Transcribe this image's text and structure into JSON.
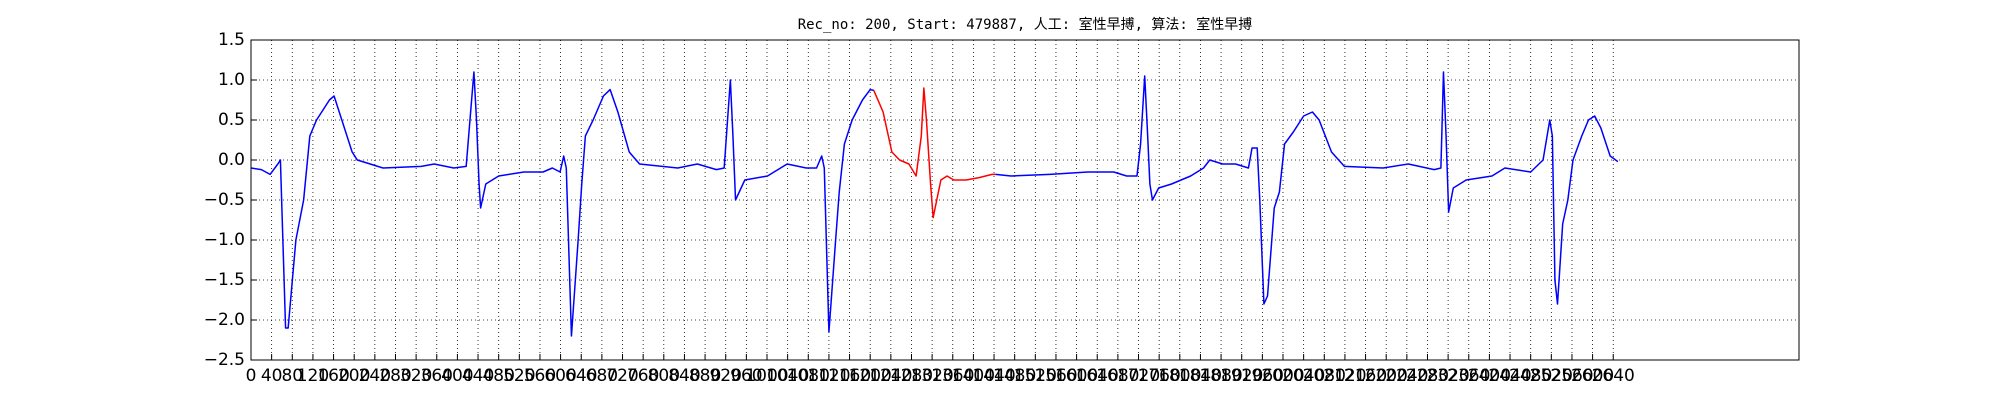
{
  "chart_data": {
    "type": "line",
    "title": "Rec_no: 200, Start: 479887, 人工: 室性早搏, 算法: 室性早搏",
    "xlim": [
      0,
      3000
    ],
    "ylim": [
      -2.5,
      1.5
    ],
    "xticks": [
      0,
      40,
      80,
      120,
      160,
      200,
      240,
      280,
      320,
      360,
      400,
      440,
      480,
      520,
      560,
      600,
      640,
      680,
      720,
      760,
      800,
      840,
      880,
      920,
      960,
      1000,
      1040,
      1080,
      1120,
      1160,
      1200,
      1240,
      1280,
      1320,
      1360,
      1400,
      1440,
      1480,
      1520,
      1560,
      1600,
      1640,
      1680,
      1720,
      1760,
      1800,
      1840,
      1880,
      1920,
      1960,
      2000,
      2040,
      2080,
      2120,
      2160,
      2200,
      2240,
      2280,
      2320,
      2360,
      2400,
      2440,
      2480,
      2520,
      2560,
      2600,
      2640
    ],
    "yticks": [
      1.5,
      {
        "value": 1.0,
        "label": "1.0"
      },
      0.5,
      {
        "value": 0.0,
        "label": "0.0"
      },
      {
        "value": -0.5,
        "label": "−0.5"
      },
      {
        "value": -1.0,
        "label": "−1.0"
      },
      {
        "value": -1.5,
        "label": "−1.5"
      },
      {
        "value": -2.0,
        "label": "−2.0"
      },
      {
        "value": -2.5,
        "label": "−2.5"
      }
    ],
    "grid": true,
    "series": [
      {
        "color": "#0000ff",
        "x": [
          0,
          20,
          37,
          52,
          57,
          67,
          72,
          87,
          102,
          114,
          127,
          152,
          161,
          176,
          196,
          206,
          231,
          256,
          330,
          355,
          393,
          417,
          432,
          437,
          442,
          445,
          455,
          480,
          529,
          566,
          584,
          599,
          606,
          611,
          621,
          634,
          641,
          648,
          663,
          683,
          696,
          711,
          733,
          753,
          827,
          865,
          902,
          917,
          929,
          934,
          939,
          957,
          1001,
          1039,
          1076,
          1096,
          1106,
          1111,
          1120,
          1133,
          1140,
          1150,
          1165,
          1185,
          1200,
          1207
        ],
        "values": [
          -0.1,
          -0.12,
          -0.18,
          -0.05,
          0.0,
          -2.1,
          -2.1,
          -1.0,
          -0.5,
          0.3,
          0.5,
          0.75,
          0.8,
          0.5,
          0.1,
          0.0,
          -0.05,
          -0.1,
          -0.08,
          -0.05,
          -0.1,
          -0.08,
          1.1,
          0.5,
          -0.3,
          -0.6,
          -0.3,
          -0.2,
          -0.15,
          -0.15,
          -0.1,
          -0.15,
          0.05,
          -0.1,
          -2.2,
          -1.0,
          -0.3,
          0.3,
          0.5,
          0.8,
          0.88,
          0.6,
          0.1,
          -0.05,
          -0.1,
          -0.05,
          -0.12,
          -0.1,
          1.0,
          0.3,
          -0.5,
          -0.25,
          -0.2,
          -0.05,
          -0.1,
          -0.1,
          0.05,
          -0.1,
          -2.15,
          -1.0,
          -0.4,
          0.2,
          0.5,
          0.75,
          0.88,
          0.87
        ]
      },
      {
        "color": "#ff0000",
        "x": [
          1207,
          1225,
          1242,
          1257,
          1275,
          1289,
          1299,
          1304,
          1309,
          1317,
          1322,
          1329,
          1337,
          1349,
          1362,
          1386,
          1411,
          1436,
          1443
        ],
        "values": [
          0.87,
          0.6,
          0.1,
          0.0,
          -0.05,
          -0.2,
          0.3,
          0.9,
          0.5,
          -0.3,
          -0.72,
          -0.5,
          -0.25,
          -0.2,
          -0.25,
          -0.25,
          -0.22,
          -0.18,
          -0.18
        ]
      },
      {
        "color": "#0000ff",
        "x": [
          1443,
          1473,
          1548,
          1622,
          1672,
          1697,
          1717,
          1724,
          1732,
          1737,
          1742,
          1747,
          1759,
          1784,
          1821,
          1846,
          1858,
          1883,
          1908,
          1933,
          1940,
          1950,
          1955,
          1963,
          1970,
          1983,
          1993,
          2003,
          2020,
          2040,
          2057,
          2070,
          2094,
          2119,
          2194,
          2243,
          2293,
          2306,
          2311,
          2316,
          2321,
          2330,
          2355,
          2405,
          2430,
          2480,
          2504,
          2517,
          2522,
          2527,
          2532,
          2542,
          2552,
          2562,
          2579,
          2592,
          2604,
          2616,
          2634,
          2649
        ],
        "values": [
          -0.18,
          -0.2,
          -0.18,
          -0.15,
          -0.15,
          -0.2,
          -0.2,
          0.2,
          1.05,
          0.4,
          -0.3,
          -0.5,
          -0.35,
          -0.3,
          -0.2,
          -0.1,
          0.0,
          -0.05,
          -0.05,
          -0.1,
          0.15,
          0.15,
          -0.5,
          -1.8,
          -1.7,
          -0.6,
          -0.4,
          0.2,
          0.35,
          0.55,
          0.6,
          0.5,
          0.1,
          -0.08,
          -0.1,
          -0.05,
          -0.12,
          -0.1,
          1.1,
          0.3,
          -0.65,
          -0.35,
          -0.25,
          -0.2,
          -0.1,
          -0.15,
          0.0,
          0.5,
          0.3,
          -1.5,
          -1.8,
          -0.8,
          -0.5,
          0.0,
          0.3,
          0.5,
          0.55,
          0.4,
          0.05,
          -0.02
        ]
      }
    ]
  }
}
